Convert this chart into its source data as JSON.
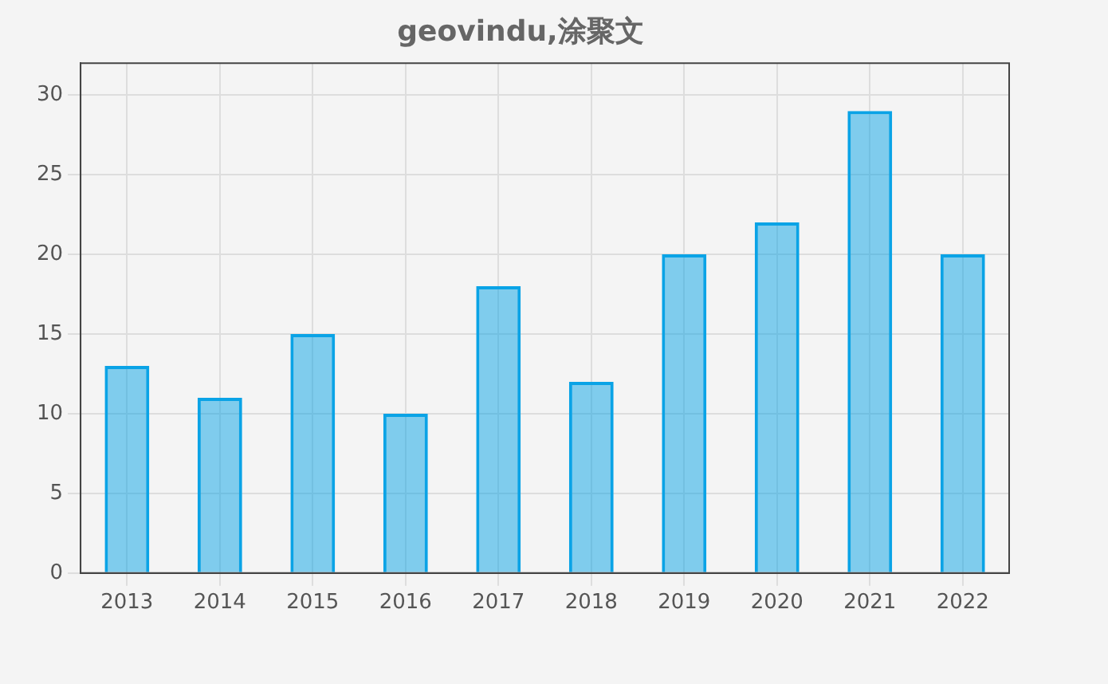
{
  "chart_data": {
    "type": "bar",
    "title": "geovindu,涂聚文",
    "categories": [
      "2013",
      "2014",
      "2015",
      "2016",
      "2017",
      "2018",
      "2019",
      "2020",
      "2021",
      "2022"
    ],
    "values": [
      13,
      11,
      15,
      10,
      18,
      12,
      20,
      22,
      29,
      20
    ],
    "color": "#0aa3e6",
    "ylim": [
      0,
      32
    ],
    "yticks": [
      0,
      5,
      10,
      15,
      20,
      25,
      30
    ],
    "grid": true
  }
}
